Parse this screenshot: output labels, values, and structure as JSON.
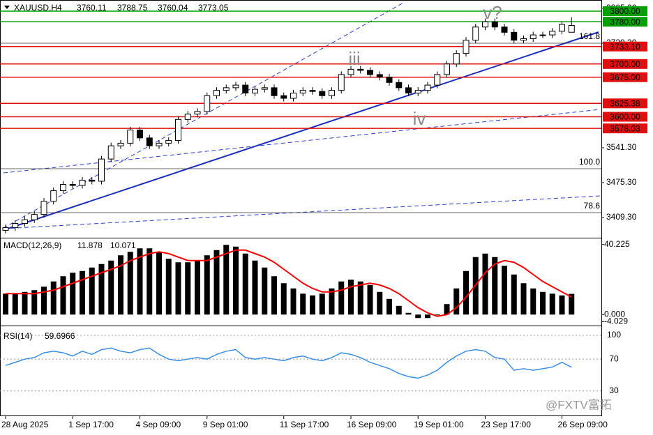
{
  "chart_data": [
    {
      "type": "candlestick",
      "title": "XAUUSD,H4",
      "categories": [
        "28 Aug 2025",
        null,
        null,
        null,
        null,
        null,
        null,
        "1 Sep 17:00",
        null,
        null,
        null,
        null,
        null,
        null,
        "4 Sep 09:00",
        null,
        null,
        null,
        null,
        null,
        null,
        "9 Sep 01:00",
        null,
        null,
        null,
        null,
        null,
        null,
        null,
        "11 Sep 17:00",
        null,
        null,
        null,
        null,
        null,
        null,
        "16 Sep 09:00",
        null,
        null,
        null,
        null,
        null,
        null,
        "19 Sep 01:00",
        null,
        null,
        null,
        null,
        null,
        null,
        "23 Sep 17:00",
        null,
        null,
        null,
        null,
        null,
        null,
        null,
        "26 Sep 09:00",
        null
      ],
      "open": [
        3385,
        3390,
        3398,
        3405,
        3415,
        3440,
        3460,
        3472,
        3470,
        3480,
        3478,
        3520,
        3545,
        3550,
        3575,
        3560,
        3545,
        3550,
        3555,
        3595,
        3605,
        3610,
        3640,
        3650,
        3655,
        3660,
        3645,
        3652,
        3655,
        3640,
        3635,
        3645,
        3650,
        3648,
        3640,
        3650,
        3680,
        3690,
        3688,
        3680,
        3675,
        3665,
        3655,
        3645,
        3650,
        3660,
        3680,
        3700,
        3720,
        3745,
        3770,
        3780,
        3770,
        3760,
        3745,
        3748,
        3755,
        3755,
        3762,
        3760.11
      ],
      "high": [
        3396,
        3404,
        3411,
        3421,
        3446,
        3466,
        3478,
        3478,
        3486,
        3486,
        3526,
        3551,
        3556,
        3581,
        3581,
        3566,
        3556,
        3561,
        3601,
        3611,
        3616,
        3646,
        3656,
        3661,
        3666,
        3666,
        3658,
        3661,
        3661,
        3646,
        3651,
        3656,
        3656,
        3654,
        3656,
        3686,
        3696,
        3696,
        3694,
        3686,
        3681,
        3671,
        3661,
        3656,
        3666,
        3686,
        3706,
        3726,
        3751,
        3776,
        3786,
        3786,
        3776,
        3766,
        3754,
        3761,
        3761,
        3768,
        3781,
        3788.75
      ],
      "low": [
        3379,
        3384,
        3392,
        3399,
        3409,
        3434,
        3454,
        3464,
        3464,
        3472,
        3472,
        3514,
        3539,
        3544,
        3554,
        3539,
        3539,
        3544,
        3549,
        3589,
        3599,
        3604,
        3634,
        3644,
        3649,
        3639,
        3639,
        3646,
        3634,
        3629,
        3629,
        3639,
        3642,
        3634,
        3634,
        3644,
        3674,
        3682,
        3674,
        3669,
        3659,
        3649,
        3639,
        3639,
        3644,
        3654,
        3674,
        3694,
        3714,
        3739,
        3764,
        3764,
        3754,
        3739,
        3739,
        3742,
        3749,
        3749,
        3756,
        3760.04
      ],
      "close": [
        3390,
        3398,
        3405,
        3415,
        3440,
        3460,
        3472,
        3470,
        3480,
        3478,
        3520,
        3545,
        3550,
        3575,
        3560,
        3545,
        3550,
        3555,
        3595,
        3605,
        3610,
        3640,
        3650,
        3655,
        3660,
        3645,
        3652,
        3655,
        3640,
        3635,
        3645,
        3650,
        3648,
        3640,
        3650,
        3680,
        3690,
        3688,
        3680,
        3675,
        3665,
        3655,
        3645,
        3650,
        3660,
        3680,
        3700,
        3720,
        3745,
        3770,
        3780,
        3770,
        3760,
        3745,
        3748,
        3755,
        3755,
        3762,
        3775,
        3773.05
      ],
      "up_color": "#ffffff",
      "down_color": "#000000",
      "ylim": [
        3372.3,
        3817.2
      ],
      "yticks": [
        {
          "value": 3409.3,
          "label": "3409.30"
        },
        {
          "value": 3475.3,
          "label": "3475.30"
        },
        {
          "value": 3541.3,
          "label": "3541.30"
        },
        {
          "value": 3739.3,
          "label": "3739.30"
        },
        {
          "value": 3805.3,
          "label": "3805.30"
        }
      ],
      "price_levels": [
        {
          "value": 3800,
          "label": "3800.00",
          "color": "#00a000",
          "text_color": "#000000"
        },
        {
          "value": 3780,
          "label": "3780.00",
          "color": "#00a000",
          "text_color": "#000000"
        },
        {
          "value": 3733.1,
          "label": "3733.10",
          "color": "#e01010",
          "text_color": "#ffffff"
        },
        {
          "value": 3700,
          "label": "3700.00",
          "color": "#e01010",
          "text_color": "#ffffff"
        },
        {
          "value": 3675,
          "label": "3675.00",
          "color": "#e01010",
          "text_color": "#ffffff"
        },
        {
          "value": 3625.38,
          "label": "3625.38",
          "color": "#e01010",
          "text_color": "#ffffff"
        },
        {
          "value": 3600,
          "label": "3600.00",
          "color": "#e01010",
          "text_color": "#ffffff"
        },
        {
          "value": 3578.03,
          "label": "3578.03",
          "color": "#e01010",
          "text_color": "#ffffff"
        }
      ],
      "fib_levels": [
        {
          "label": "161.8",
          "price": 3739.3
        },
        {
          "label": "100.0",
          "price": 3501.7
        },
        {
          "label": "78.6",
          "price": 3418.5
        }
      ],
      "annotations": [
        "v?",
        "iii",
        "iv"
      ]
    },
    {
      "type": "macd",
      "label": "MACD(12,26,9)",
      "values": [
        12,
        12,
        13,
        14,
        16,
        19,
        22,
        24,
        25,
        27,
        29,
        31,
        34,
        36,
        38,
        38,
        36,
        32,
        30,
        30,
        31,
        34,
        37,
        40,
        39,
        35,
        31,
        27,
        22,
        18,
        15,
        12,
        11,
        12,
        15,
        19,
        20,
        19,
        17,
        13,
        9,
        5,
        1,
        -2,
        -2,
        0,
        6,
        15,
        25,
        33,
        35,
        33,
        28,
        23,
        18,
        15,
        13,
        12,
        11,
        11.878
      ],
      "signal": [
        12,
        12,
        12,
        12,
        13,
        14,
        16,
        18,
        20,
        22,
        24,
        26,
        28,
        31,
        33,
        35,
        36,
        35,
        33,
        31,
        31,
        31,
        33,
        35,
        37,
        37,
        35,
        33,
        30,
        26,
        22,
        18,
        15,
        13,
        13,
        14,
        16,
        17,
        18,
        17,
        15,
        12,
        8,
        4,
        1,
        -1,
        0,
        4,
        10,
        17,
        24,
        29,
        31,
        30,
        27,
        23,
        19,
        16,
        13,
        10.071
      ],
      "color": "#000000",
      "signal_color": "#ff0000",
      "ylim": [
        -5.5,
        42.9
      ],
      "yticks": [
        40.225,
        {
          "value": 0,
          "label": "0.000"
        },
        -4.029
      ]
    },
    {
      "type": "line",
      "label": "RSI(14)",
      "values": [
        62,
        66,
        70,
        72,
        78,
        80,
        78,
        74,
        80,
        76,
        82,
        84,
        80,
        78,
        82,
        84,
        76,
        70,
        68,
        70,
        72,
        70,
        76,
        80,
        82,
        72,
        70,
        72,
        70,
        68,
        72,
        74,
        70,
        68,
        72,
        78,
        76,
        72,
        66,
        62,
        58,
        52,
        48,
        46,
        50,
        56,
        66,
        74,
        80,
        82,
        80,
        72,
        70,
        56,
        58,
        56,
        58,
        60,
        66,
        59.6966
      ],
      "color": "#3a8ee6",
      "ylim": [
        -1,
        109.7
      ],
      "yticks": [
        100,
        70,
        30
      ]
    }
  ],
  "watermark": "@FXTV富拓"
}
